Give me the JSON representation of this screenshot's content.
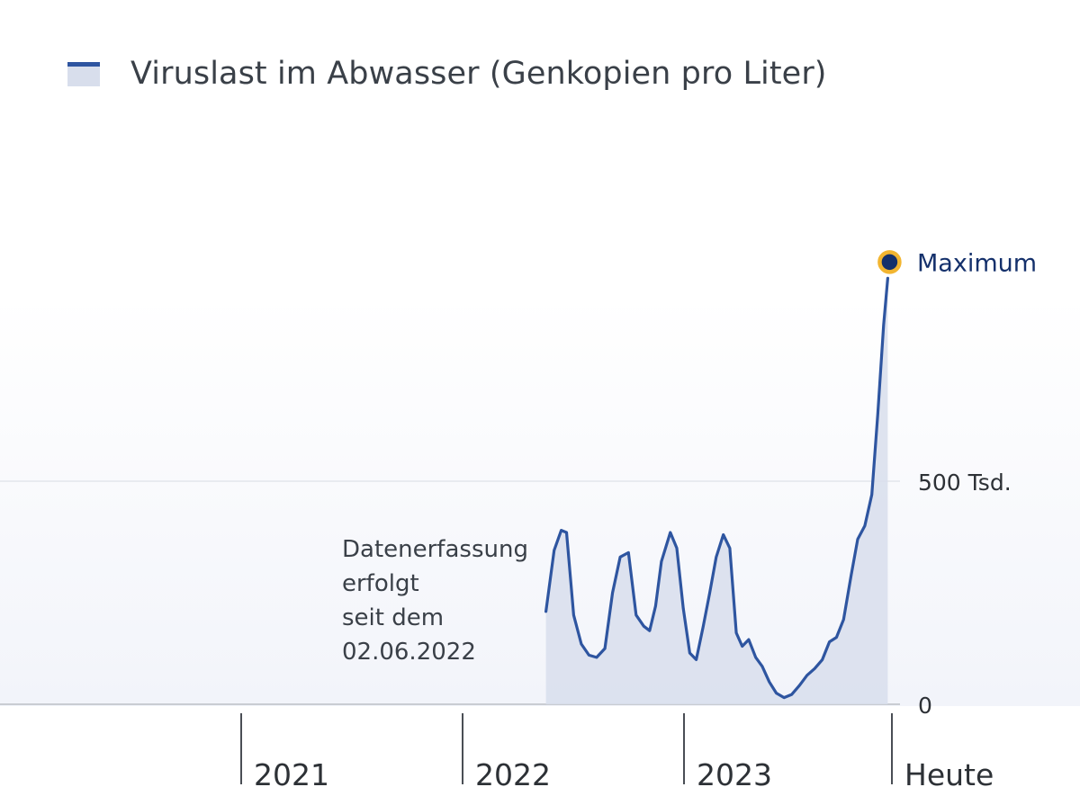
{
  "legend": {
    "label": "Viruslast im Abwasser (Genkopien pro Liter)"
  },
  "annotation": {
    "lines": [
      "Datenerfassung",
      "erfolgt",
      "seit dem",
      "02.06.2022"
    ]
  },
  "colors": {
    "line": "#2e55a0",
    "area": "#d8deec",
    "marker_fill": "#14306b",
    "marker_ring": "#f2b530",
    "max_label": "#14306b"
  },
  "chart_data": {
    "type": "area",
    "title": "",
    "xlabel": "",
    "ylabel": "",
    "legend_position": "top-left",
    "x_ticks": [
      "2021",
      "2022",
      "2023",
      "Heute"
    ],
    "y_ticks": [
      {
        "value": 0,
        "label": "0"
      },
      {
        "value": 500000,
        "label": "500 Tsd."
      }
    ],
    "ylim": [
      0,
      1000000
    ],
    "grid": "horizontal",
    "max_label": "Maximum",
    "series": [
      {
        "name": "Viruslast im Abwasser (Genkopien pro Liter)",
        "x": [
          "2022-06-02",
          "2022-06-16",
          "2022-06-28",
          "2022-07-07",
          "2022-07-19",
          "2022-08-01",
          "2022-08-14",
          "2022-08-27",
          "2022-09-10",
          "2022-09-23",
          "2022-10-06",
          "2022-10-20",
          "2022-11-02",
          "2022-11-15",
          "2022-11-25",
          "2022-12-05",
          "2022-12-15",
          "2022-12-30",
          "2023-01-10",
          "2023-01-21",
          "2023-02-01",
          "2023-02-12",
          "2023-02-24",
          "2023-03-07",
          "2023-03-18",
          "2023-03-30",
          "2023-04-10",
          "2023-04-21",
          "2023-05-01",
          "2023-05-12",
          "2023-05-24",
          "2023-06-04",
          "2023-06-16",
          "2023-06-28",
          "2023-07-11",
          "2023-07-24",
          "2023-08-06",
          "2023-08-19",
          "2023-09-01",
          "2023-09-14",
          "2023-09-26",
          "2023-10-08",
          "2023-10-20",
          "2023-11-02",
          "2023-11-13",
          "2023-11-25",
          "2023-12-07",
          "2023-12-17",
          "2023-12-27",
          "2024-01-03"
        ],
        "values": [
          208000,
          345000,
          390000,
          385000,
          200000,
          135000,
          110000,
          105000,
          125000,
          250000,
          330000,
          340000,
          200000,
          175000,
          165000,
          220000,
          320000,
          385000,
          350000,
          215000,
          115000,
          100000,
          175000,
          250000,
          330000,
          380000,
          350000,
          160000,
          130000,
          145000,
          105000,
          85000,
          50000,
          25000,
          15000,
          22000,
          42000,
          65000,
          80000,
          100000,
          140000,
          150000,
          190000,
          290000,
          370000,
          400000,
          470000,
          650000,
          850000,
          955000
        ]
      }
    ]
  }
}
